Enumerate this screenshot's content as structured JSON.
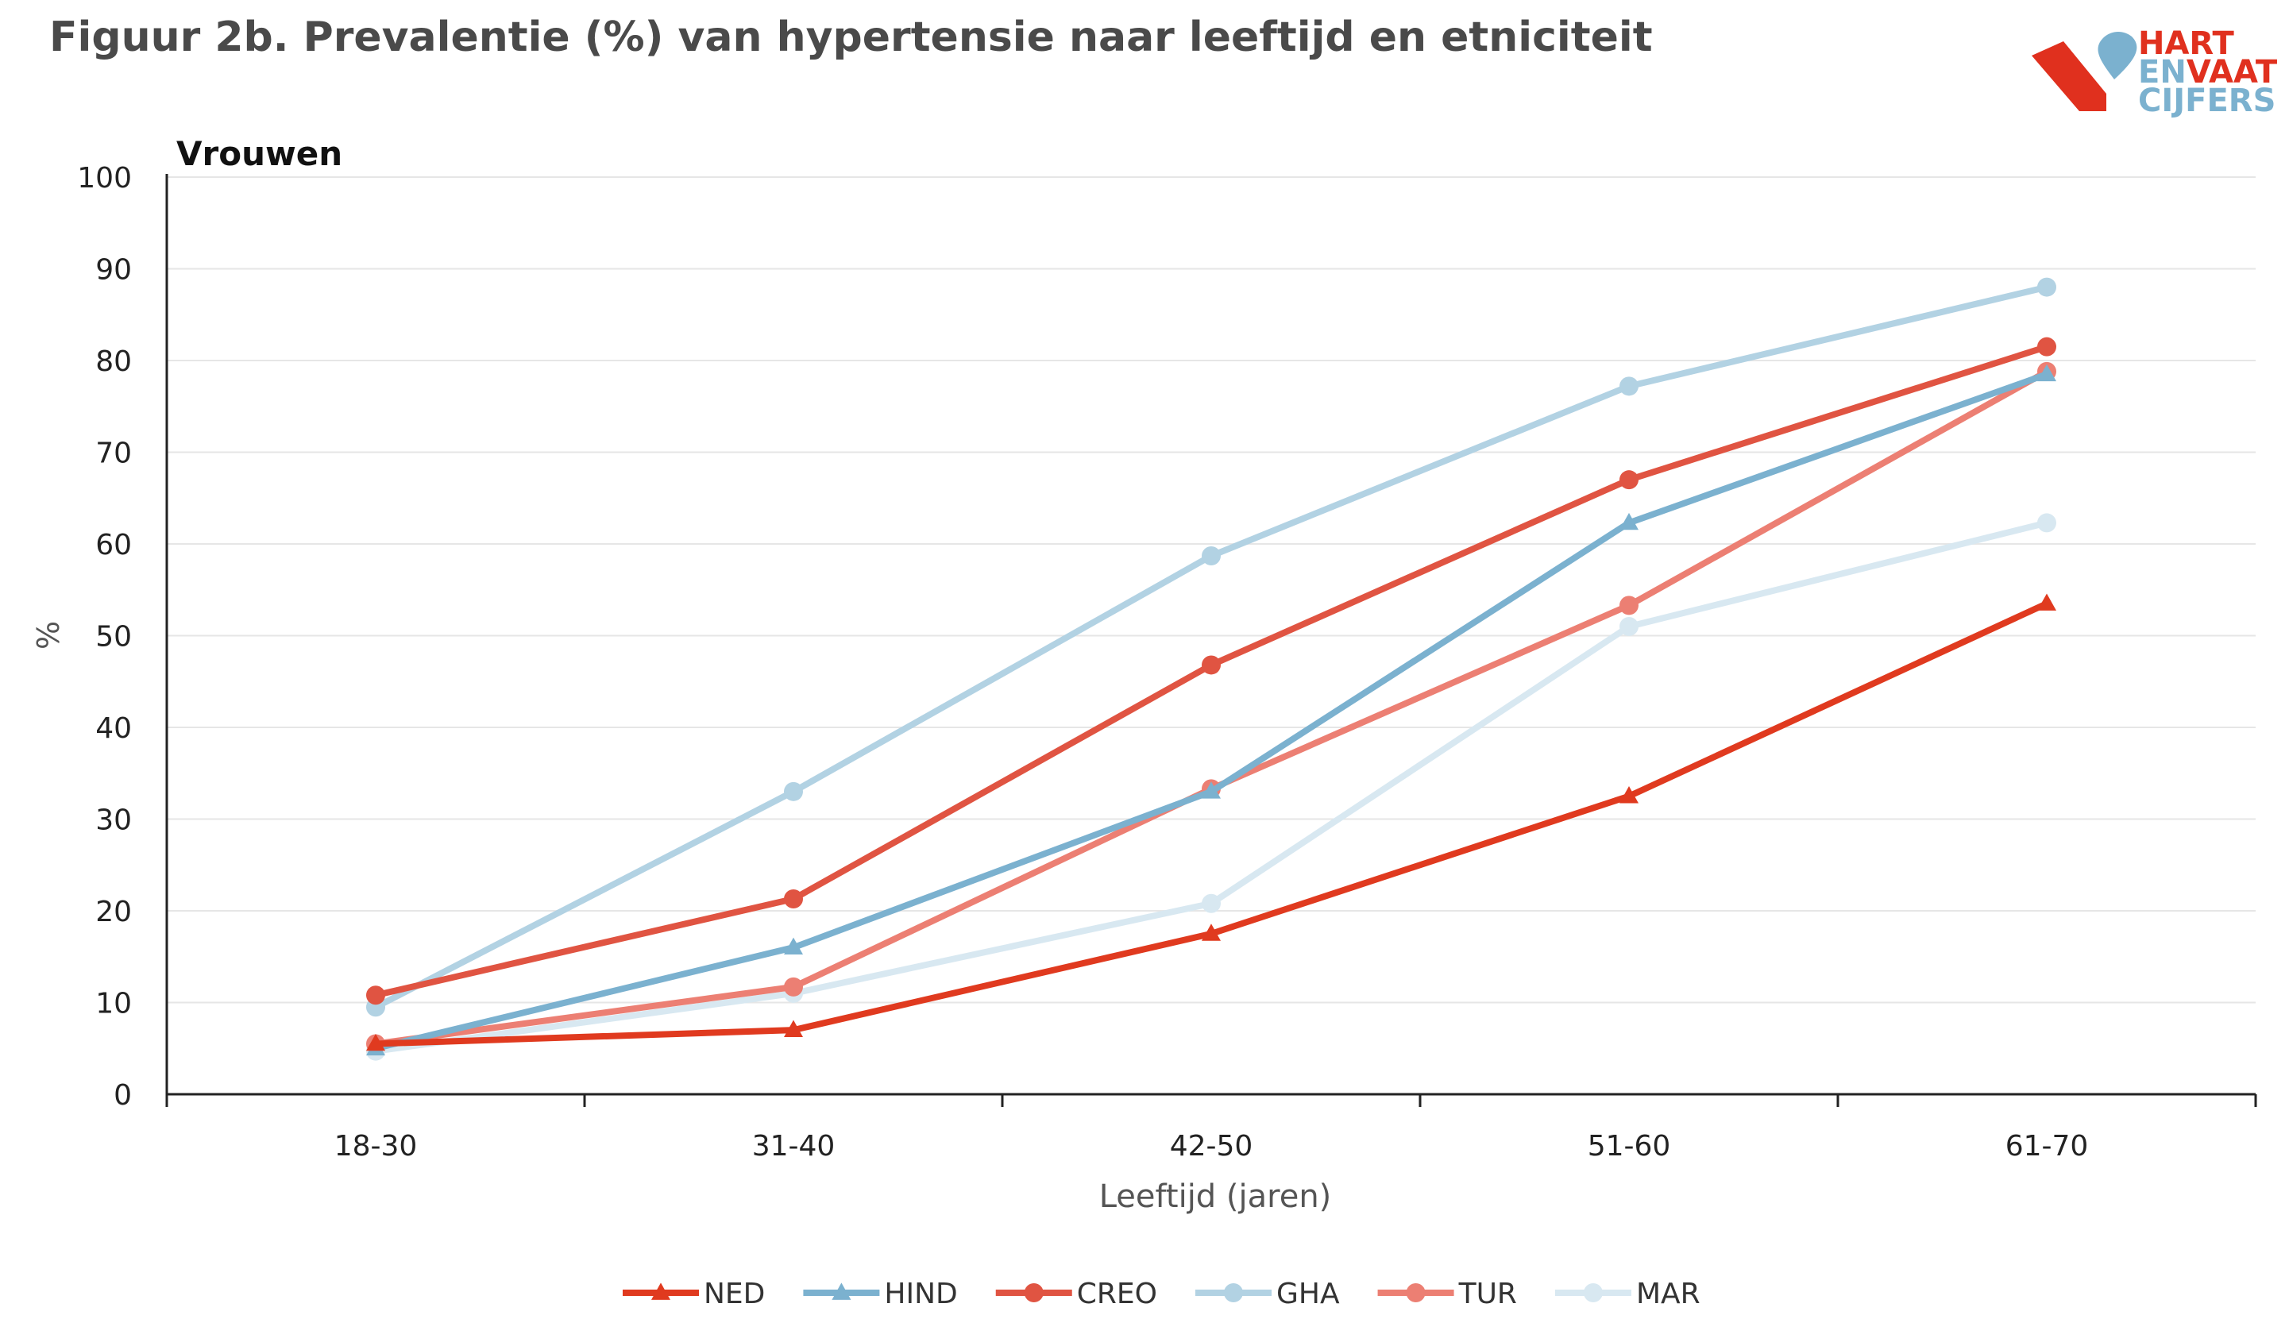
{
  "title": "Figuur 2b. Prevalentie (%) van hypertensie naar leeftijd en etniciteit",
  "logo": {
    "line1": "HART",
    "line2a": "EN",
    "line2b": "VAAT",
    "line3": "CIJFERS"
  },
  "chart_data": {
    "type": "line",
    "subtitle": "Vrouwen",
    "xlabel": "Leeftijd (jaren)",
    "ylabel": "%",
    "ylim": [
      0,
      100
    ],
    "yticks": [
      0,
      10,
      20,
      30,
      40,
      50,
      60,
      70,
      80,
      90,
      100
    ],
    "grid": true,
    "legend_position": "bottom",
    "categories": [
      "18-30",
      "31-40",
      "42-50",
      "51-60",
      "61-70"
    ],
    "series": [
      {
        "name": "NED",
        "color": "#e03a1f",
        "marker": "triangle",
        "values": [
          5.5,
          7.0,
          17.5,
          32.5,
          53.5
        ]
      },
      {
        "name": "HIND",
        "color": "#7bb1cf",
        "marker": "triangle",
        "values": [
          5.0,
          16.0,
          33.0,
          62.3,
          78.5
        ]
      },
      {
        "name": "CREO",
        "color": "#e05442",
        "marker": "circle",
        "values": [
          10.8,
          21.3,
          46.8,
          67.0,
          81.5
        ]
      },
      {
        "name": "GHA",
        "color": "#b2d2e3",
        "marker": "circle",
        "values": [
          9.5,
          33.0,
          58.7,
          77.2,
          88.0
        ]
      },
      {
        "name": "TUR",
        "color": "#ec7f73",
        "marker": "circle",
        "values": [
          5.5,
          11.7,
          33.3,
          53.3,
          78.8
        ]
      },
      {
        "name": "MAR",
        "color": "#d8e8f1",
        "marker": "circle",
        "values": [
          4.7,
          11.0,
          20.8,
          51.0,
          62.3
        ]
      }
    ]
  }
}
